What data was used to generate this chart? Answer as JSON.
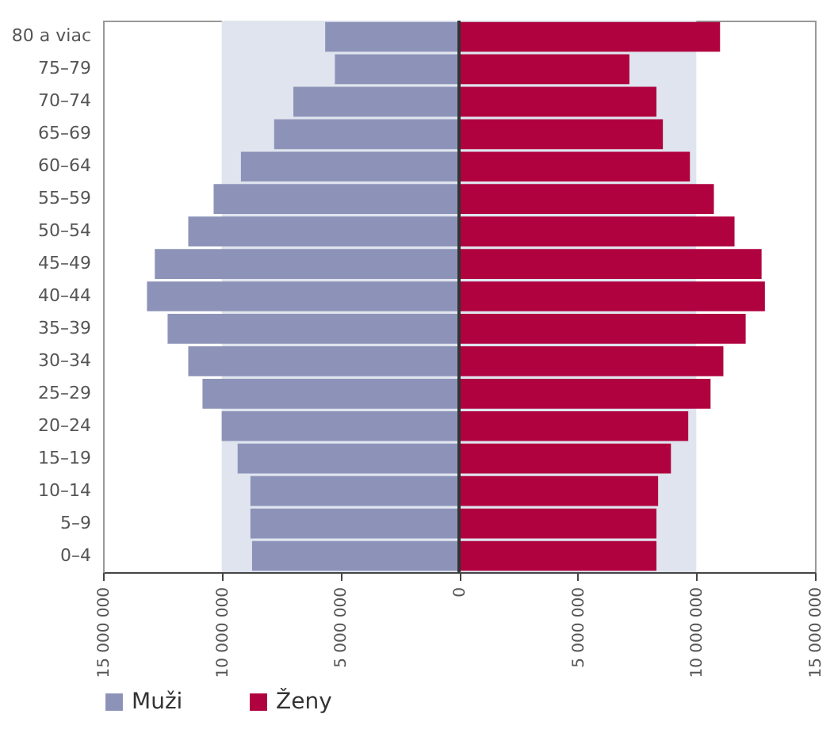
{
  "chart_data": {
    "type": "bar",
    "orientation": "horizontal",
    "stacked": true,
    "legend": "bottom",
    "categories": [
      "80 a viac",
      "75–79",
      "70–74",
      "65–69",
      "60–64",
      "55–59",
      "50–54",
      "45–49",
      "40–44",
      "35–39",
      "30–34",
      "25–29",
      "20–24",
      "15–19",
      "10–14",
      "5–9",
      "0–4"
    ],
    "series": [
      {
        "name": "Muži",
        "color": "#8d93b8",
        "values": [
          -5640000,
          -5230000,
          -6980000,
          -7790000,
          -9190000,
          -10340000,
          -11410000,
          -12820000,
          -13150000,
          -12280000,
          -11410000,
          -10810000,
          -10000000,
          -9330000,
          -8790000,
          -8790000,
          -8720000
        ]
      },
      {
        "name": "Ženy",
        "color": "#b0023f",
        "values": [
          11000000,
          7180000,
          8320000,
          8590000,
          9730000,
          10740000,
          11610000,
          12750000,
          12890000,
          12080000,
          11140000,
          10600000,
          9660000,
          8930000,
          8390000,
          8320000,
          8320000
        ]
      }
    ],
    "xlim": [
      -15000000,
      15000000
    ],
    "xticks": [
      {
        "value": -15000000,
        "label": "15 000 000"
      },
      {
        "value": -10000000,
        "label": "10 000 000"
      },
      {
        "value": -5000000,
        "label": "5 000 000"
      },
      0,
      {
        "value": 5000000,
        "label": "5 000 000"
      },
      {
        "value": 10000000,
        "label": "10 000 000"
      },
      {
        "value": 15000000,
        "label": "15 000 000"
      }
    ],
    "bands": [
      {
        "axis": "x",
        "from": -10000000,
        "to": 10000000,
        "color": "#dfe4ee"
      }
    ],
    "ref_lines": [
      {
        "axis": "x",
        "value": 0,
        "color": "#333333"
      }
    ]
  }
}
